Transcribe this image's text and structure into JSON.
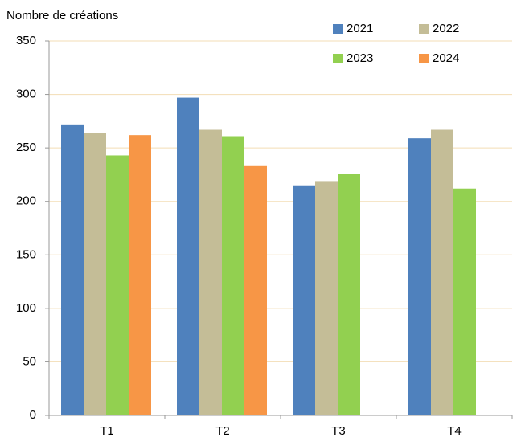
{
  "chart_data": {
    "type": "bar",
    "y_label": "Nombre de créations",
    "categories": [
      "T1",
      "T2",
      "T3",
      "T4"
    ],
    "series": [
      {
        "name": "2021",
        "color": "#4f81bd",
        "values": [
          272,
          297,
          215,
          259
        ]
      },
      {
        "name": "2022",
        "color": "#c4bd97",
        "values": [
          264,
          267,
          219,
          267
        ]
      },
      {
        "name": "2023",
        "color": "#92d050",
        "values": [
          243,
          261,
          226,
          212
        ]
      },
      {
        "name": "2024",
        "color": "#f79646",
        "values": [
          262,
          233,
          null,
          null
        ]
      }
    ],
    "ylim": [
      0,
      350
    ],
    "yticks": [
      0,
      50,
      100,
      150,
      200,
      250,
      300,
      350
    ],
    "grid": true,
    "legend": "top-right"
  }
}
